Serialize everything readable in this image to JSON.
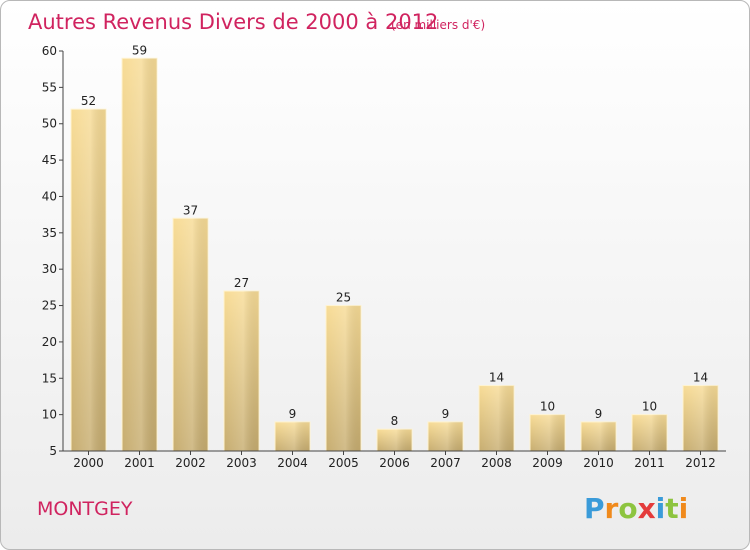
{
  "chart_data": {
    "type": "bar",
    "title": "Autres Revenus Divers de 2000 à 2012",
    "subtitle": "(en milliers d'€)",
    "categories": [
      "2000",
      "2001",
      "2002",
      "2003",
      "2004",
      "2005",
      "2006",
      "2007",
      "2008",
      "2009",
      "2010",
      "2011",
      "2012"
    ],
    "values": [
      52,
      59,
      37,
      27,
      9,
      25,
      8,
      9,
      14,
      10,
      9,
      10,
      14
    ],
    "ylim": [
      5,
      60
    ],
    "yticks": [
      5,
      10,
      15,
      20,
      25,
      30,
      35,
      40,
      45,
      50,
      55,
      60
    ],
    "grid": false,
    "xlabel": "",
    "ylabel": ""
  },
  "place": "MONTGEY",
  "logo": {
    "letters": [
      "P",
      "r",
      "o",
      "x",
      "i",
      "t",
      "i"
    ],
    "colors": [
      "#3a9bd9",
      "#f08a1c",
      "#8dc43f",
      "#e43b3b",
      "#3a9bd9",
      "#8dc43f",
      "#f08a1c"
    ]
  },
  "colors": {
    "bar_light": "#f8dc96",
    "bar_dark": "#c7ad70",
    "title": "#d0235f",
    "axis": "#444444"
  }
}
